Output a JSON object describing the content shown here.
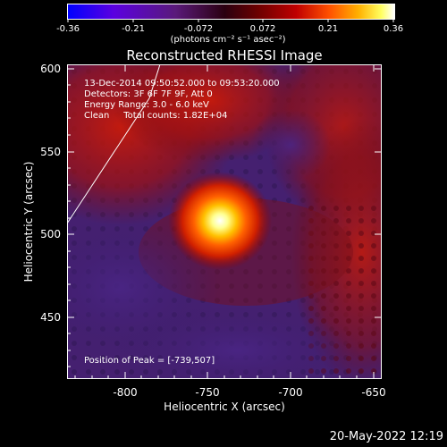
{
  "colorbar": {
    "ticks": [
      "-0.36",
      "-0.21",
      "-0.072",
      "0.072",
      "0.21",
      "0.36"
    ],
    "units": "(photons cm⁻² s⁻¹ asec⁻²)"
  },
  "title": "Reconstructed RHESSI Image",
  "info": {
    "line1": "13-Dec-2014 09:50:52.000 to 09:53:20.000",
    "line2": "Detectors: 3F 6F 7F 9F, Att 0",
    "line3": "Energy Range: 3.0 - 6.0 keV",
    "line4": "Clean     Total counts: 1.82E+04"
  },
  "peak_text": "Position of Peak = [-739,507]",
  "axes": {
    "x_label": "Heliocentric X (arcsec)",
    "y_label": "Heliocentric Y (arcsec)",
    "x_ticks": [
      "-800",
      "-750",
      "-700",
      "-650"
    ],
    "y_ticks": [
      "600",
      "550",
      "500",
      "450"
    ]
  },
  "footer_date": "20-May-2022 12:19"
}
